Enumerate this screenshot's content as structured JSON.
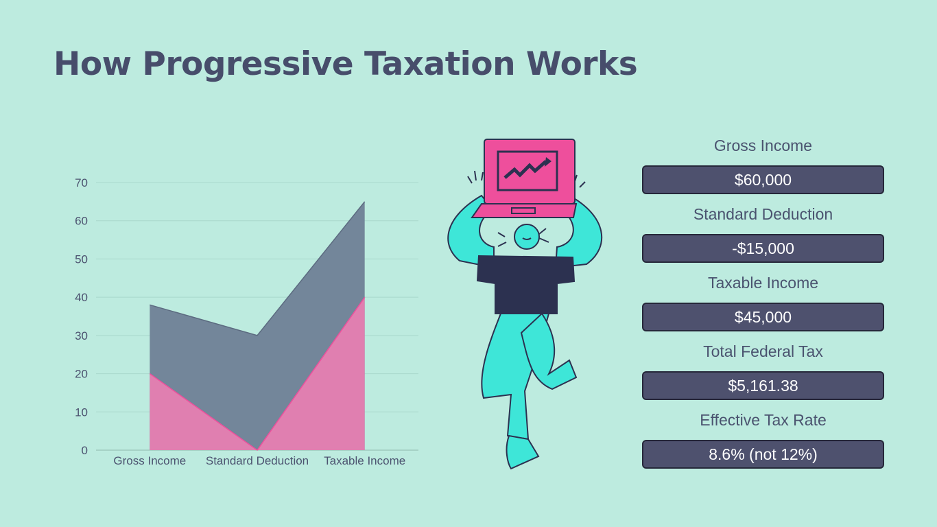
{
  "title": "How Progressive Taxation Works",
  "chart_data": {
    "type": "area",
    "categories": [
      "Gross Income",
      "Standard Deduction",
      "Taxable Income"
    ],
    "series": [
      {
        "values": [
          20,
          0,
          40
        ],
        "color": "#e07fb0"
      },
      {
        "values": [
          38,
          30,
          65
        ],
        "color": "#73869a"
      }
    ],
    "ylim": [
      0,
      70
    ],
    "yticks": [
      0,
      10,
      20,
      30,
      40,
      50,
      60,
      70
    ],
    "grid": true
  },
  "stats": [
    {
      "label": "Gross Income",
      "value": "$60,000"
    },
    {
      "label": "Standard Deduction",
      "value": "-$15,000"
    },
    {
      "label": "Taxable Income",
      "value": "$45,000"
    },
    {
      "label": "Total Federal Tax",
      "value": "$5,161.38"
    },
    {
      "label": "Effective Tax Rate",
      "value": "8.6% (not 12%)"
    }
  ],
  "colors": {
    "background": "#bdebdf",
    "title": "#474d6b",
    "box": "#4e516e",
    "pink": "#ee4f9c",
    "teal": "#3ee6d8",
    "navy": "#2c3150"
  }
}
